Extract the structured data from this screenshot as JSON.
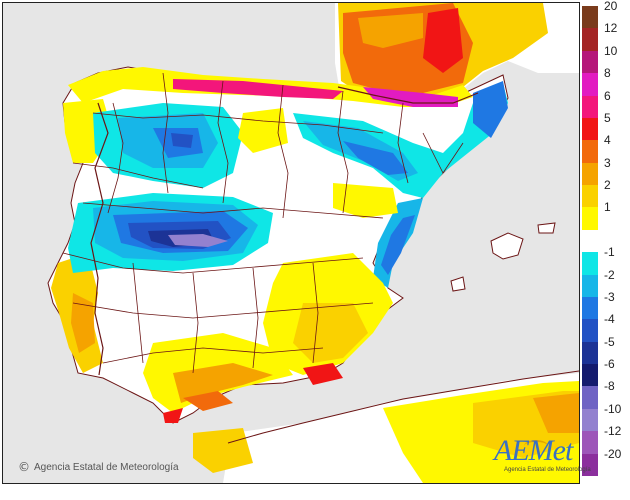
{
  "map": {
    "sea_color": "#e6e6e6",
    "land_base_color": "#ffffff",
    "border_color": "#6b1515"
  },
  "legend": {
    "items": [
      {
        "label": "20",
        "color": "#7a3b1c"
      },
      {
        "label": "12",
        "color": "#a42525"
      },
      {
        "label": "10",
        "color": "#b5177a"
      },
      {
        "label": "8",
        "color": "#e21bc1"
      },
      {
        "label": "6",
        "color": "#f3167b"
      },
      {
        "label": "5",
        "color": "#f11515"
      },
      {
        "label": "4",
        "color": "#f26a0b"
      },
      {
        "label": "3",
        "color": "#f5a300"
      },
      {
        "label": "2",
        "color": "#fad100"
      },
      {
        "label": "1",
        "color": "#fff800"
      },
      {
        "label": "",
        "color": "#ffffff"
      },
      {
        "label": "-1",
        "color": "#0fe6e6"
      },
      {
        "label": "-2",
        "color": "#17b6e8"
      },
      {
        "label": "-3",
        "color": "#1f78e3"
      },
      {
        "label": "-4",
        "color": "#2252c4"
      },
      {
        "label": "-5",
        "color": "#1c3396"
      },
      {
        "label": "-6",
        "color": "#141b6e"
      },
      {
        "label": "-8",
        "color": "#6f63c4"
      },
      {
        "label": "-10",
        "color": "#9381cf"
      },
      {
        "label": "-12",
        "color": "#9d56b9"
      },
      {
        "label": "-20",
        "color": "#8b2f9d"
      }
    ]
  },
  "footer": {
    "copyright_symbol": "©",
    "credit": "Agencia Estatal de Meteorología"
  },
  "logo": {
    "name": "AEMet",
    "subtitle": "Agencia Estatal de Meteorología"
  }
}
